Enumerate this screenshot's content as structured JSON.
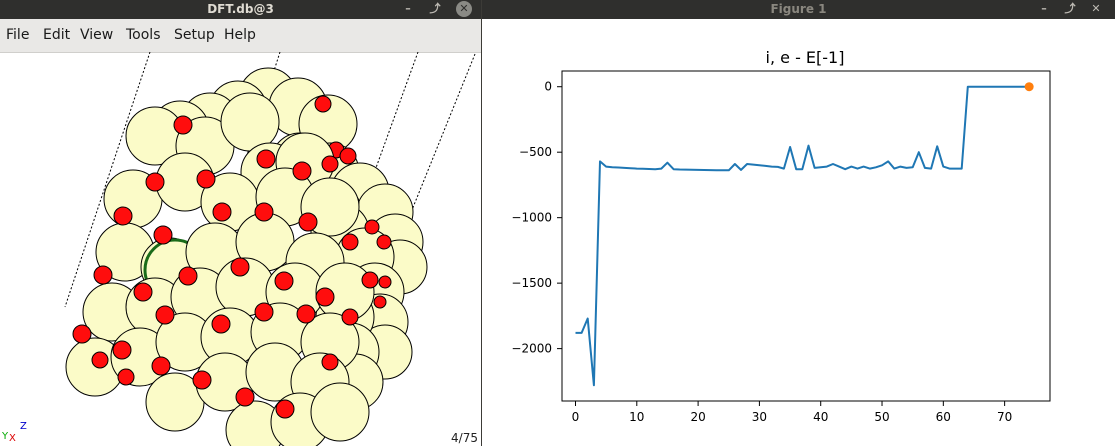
{
  "ase_window": {
    "title": "DFT.db@3",
    "menu": [
      "File",
      "Edit",
      "View",
      "Tools",
      "Setup",
      "Help"
    ],
    "frame_counter": "4/75",
    "axis_labels": {
      "x": "X",
      "y": "Y",
      "z": "Z"
    }
  },
  "figure_window": {
    "title": "Figure 1"
  },
  "window_buttons": {
    "minimize": "–",
    "maximize": "⤴",
    "close": "✕"
  },
  "colors": {
    "line": "#1f77b4",
    "marker": "#ff7f0e",
    "atom_large": "#fbfbc8",
    "atom_small": "#ff0d0d",
    "titlebar": "#2f2f2d"
  },
  "chart_data": {
    "type": "line",
    "title": "i, e - E[-1]",
    "xlabel": "",
    "ylabel": "",
    "xlim": [
      -2.2,
      77.4
    ],
    "ylim": [
      -2400,
      120
    ],
    "xticks": [
      0,
      10,
      20,
      30,
      40,
      50,
      60,
      70
    ],
    "yticks": [
      0,
      -500,
      -1000,
      -1500,
      -2000
    ],
    "ytick_labels": [
      "0",
      "−500",
      "−1000",
      "−1500",
      "−2000"
    ],
    "grid": false,
    "series": [
      {
        "x": [
          0,
          1,
          2,
          3,
          4,
          5,
          6,
          7,
          8,
          9,
          10,
          11,
          12,
          13,
          14,
          15,
          16,
          17,
          18,
          19,
          20,
          21,
          22,
          23,
          24,
          25,
          26,
          27,
          28,
          29,
          30,
          31,
          32,
          33,
          34,
          35,
          36,
          37,
          38,
          39,
          40,
          41,
          42,
          43,
          44,
          45,
          46,
          47,
          48,
          49,
          50,
          51,
          52,
          53,
          54,
          55,
          56,
          57,
          58,
          59,
          60,
          61,
          62,
          63,
          64,
          65,
          66,
          67,
          68,
          69,
          70,
          71,
          72,
          73,
          74
        ],
        "y": [
          -1880,
          -1880,
          -1770,
          -2280,
          -570,
          -610,
          -615,
          -617,
          -620,
          -622,
          -625,
          -627,
          -628,
          -630,
          -625,
          -580,
          -630,
          -632,
          -633,
          -634,
          -635,
          -636,
          -637,
          -638,
          -638,
          -638,
          -590,
          -635,
          -590,
          -595,
          -600,
          -605,
          -610,
          -612,
          -625,
          -460,
          -630,
          -630,
          -450,
          -620,
          -615,
          -610,
          -590,
          -610,
          -630,
          -610,
          -625,
          -610,
          -625,
          -615,
          -600,
          -570,
          -625,
          -610,
          -620,
          -615,
          -500,
          -620,
          -625,
          -455,
          -610,
          -625,
          -625,
          -625,
          0,
          0,
          0,
          0,
          0,
          0,
          0,
          0,
          0,
          0,
          0
        ]
      }
    ],
    "highlight_point": {
      "x": 74,
      "y": 0
    }
  }
}
